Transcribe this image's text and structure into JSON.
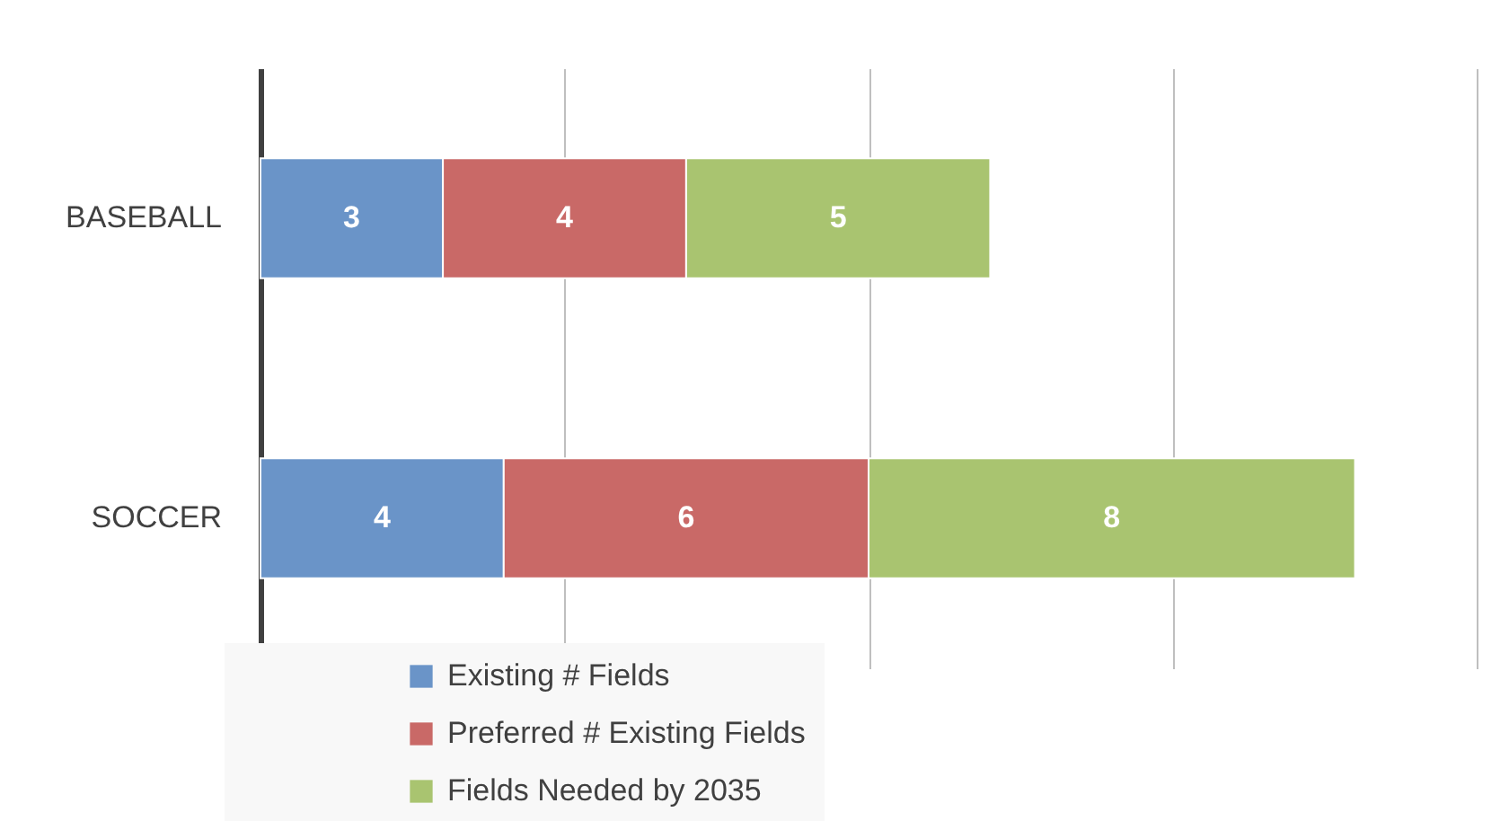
{
  "chart_data": {
    "type": "bar",
    "orientation": "horizontal",
    "stacked": true,
    "categories": [
      "BASEBALL",
      "SOCCER"
    ],
    "series": [
      {
        "name": "Existing # Fields",
        "color": "#6a94c8",
        "values": [
          3,
          4
        ]
      },
      {
        "name": "Preferred # Existing Fields",
        "color": "#c96967",
        "values": [
          4,
          6
        ]
      },
      {
        "name": "Fields Needed by 2035",
        "color": "#a9c470",
        "values": [
          5,
          8
        ]
      }
    ],
    "xlim": [
      0,
      20
    ],
    "xticks": [
      {
        "value": 0,
        "label": null
      },
      {
        "value": 5,
        "label": null
      },
      {
        "value": 10,
        "label": null
      },
      {
        "value": 15,
        "label": null
      },
      {
        "value": 20,
        "label": null
      }
    ],
    "tick_labels": "y",
    "grid": "x",
    "legend": "bottom",
    "data_labels": true
  }
}
